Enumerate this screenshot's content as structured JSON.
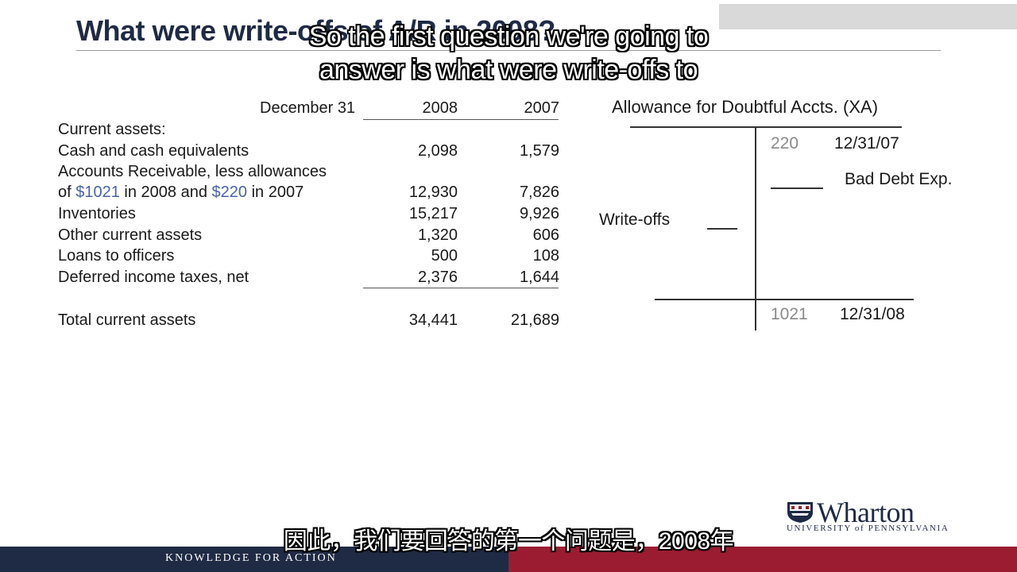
{
  "slide": {
    "title": "What were write-offs of A/R in 2008?"
  },
  "subtitles": {
    "english_line1": "So the first question we're going to",
    "english_line2": "answer is what were write-offs to",
    "chinese": "因此，我们要回答的第一个问题是，2008年"
  },
  "balance_sheet": {
    "header": {
      "label": "December 31",
      "year1": "2008",
      "year2": "2007"
    },
    "section_label": "Current assets:",
    "rows": [
      {
        "label": "Cash and cash equivalents",
        "v2008": "2,098",
        "v2007": "1,579"
      },
      {
        "label": "Accounts Receivable, less allowances",
        "v2008": "",
        "v2007": ""
      },
      {
        "label_pre": "of ",
        "amt1": "$1021",
        "label_mid": " in 2008 and ",
        "amt2": "$220",
        "label_post": " in 2007",
        "v2008": "12,930",
        "v2007": "7,826"
      },
      {
        "label": "Inventories",
        "v2008": "15,217",
        "v2007": "9,926"
      },
      {
        "label": "Other current assets",
        "v2008": "1,320",
        "v2007": "606"
      },
      {
        "label": "Loans to officers",
        "v2008": "500",
        "v2007": "108"
      },
      {
        "label": "Deferred income taxes, net",
        "v2008": "2,376",
        "v2007": "1,644"
      }
    ],
    "total": {
      "label": "Total current assets",
      "v2008": "34,441",
      "v2007": "21,689"
    }
  },
  "t_account": {
    "title": "Allowance for Doubtful Accts. (XA)",
    "opening": {
      "amount": "220",
      "date": "12/31/07"
    },
    "credit_entry": "Bad Debt Exp.",
    "debit_entry": "Write-offs",
    "closing": {
      "amount": "1021",
      "date": "12/31/08"
    }
  },
  "footer": {
    "tagline": "KNOWLEDGE FOR ACTION",
    "logo_name": "Wharton",
    "logo_university": "UNIVERSITY of PENNSYLVANIA"
  },
  "colors": {
    "navy": "#1f2a44",
    "crimson": "#9b1c31",
    "highlight_blue": "#4a62a8"
  }
}
